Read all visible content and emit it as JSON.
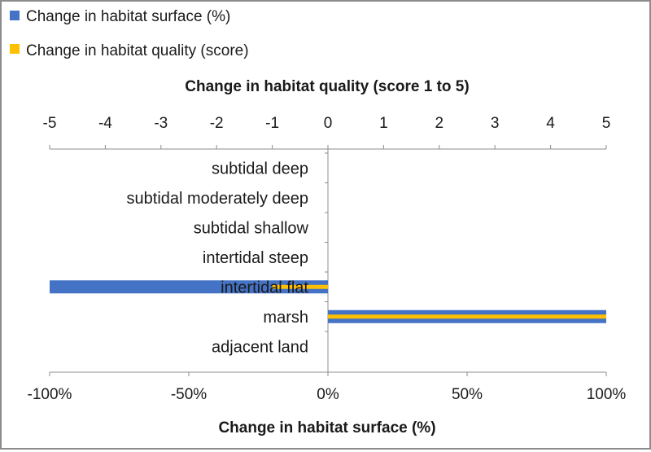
{
  "chart_data": {
    "type": "bar",
    "orientation": "horizontal",
    "categories": [
      "subtidal deep",
      "subtidal moderately deep",
      "subtidal shallow",
      "intertidal steep",
      "intertidal flat",
      "marsh",
      "adjacent land"
    ],
    "series": [
      {
        "name": "Change in habitat surface (%)",
        "axis": "bottom",
        "color": "#4472C4",
        "values": [
          0,
          0,
          0,
          0,
          -100,
          100,
          0
        ]
      },
      {
        "name": "Change in habitat quality (score)",
        "axis": "top",
        "color": "#FFC000",
        "values": [
          0,
          0,
          0,
          0,
          -1,
          5,
          0
        ]
      }
    ],
    "top_axis": {
      "title": "Change in habitat quality (score 1 to 5)",
      "range": [
        -5,
        5
      ],
      "ticks": [
        "-5",
        "-4",
        "-3",
        "-2",
        "-1",
        "0",
        "1",
        "2",
        "3",
        "4",
        "5"
      ]
    },
    "bottom_axis": {
      "title": "Change in habitat surface (%)",
      "range": [
        -100,
        100
      ],
      "ticks": [
        "-100%",
        "-50%",
        "0%",
        "50%",
        "100%"
      ]
    },
    "legend_position": "top-left",
    "grid": false
  }
}
